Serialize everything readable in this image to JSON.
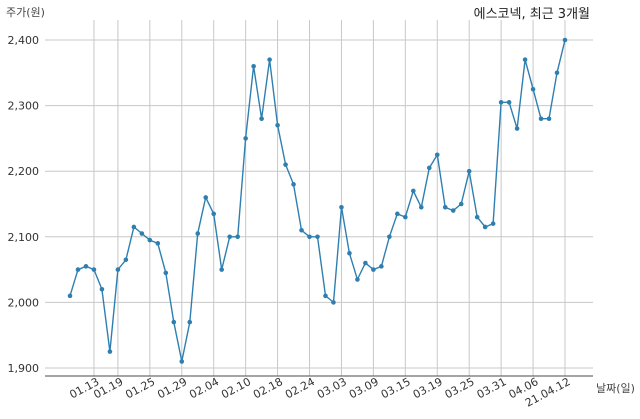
{
  "chart_data": {
    "type": "line",
    "title": "에스코넥, 최근 3개월",
    "ylabel": "주가(원)",
    "xlabel": "날짜(일)",
    "ylim": [
      1900,
      2400
    ],
    "yticks": [
      1900,
      2000,
      2100,
      2200,
      2300,
      2400
    ],
    "ytick_labels": [
      "1,900",
      "2,000",
      "2,100",
      "2,200",
      "2,300",
      "2,400"
    ],
    "grid": true,
    "line_color": "#2e7fb0",
    "xtick_labels": [
      {
        "i": 3,
        "label": "01.13"
      },
      {
        "i": 6,
        "label": "01.19"
      },
      {
        "i": 10,
        "label": "01.25"
      },
      {
        "i": 14,
        "label": "01.29"
      },
      {
        "i": 18,
        "label": "02.04"
      },
      {
        "i": 22,
        "label": "02.10"
      },
      {
        "i": 26,
        "label": "02.18"
      },
      {
        "i": 30,
        "label": "02.24"
      },
      {
        "i": 34,
        "label": "03.03"
      },
      {
        "i": 38,
        "label": "03.09"
      },
      {
        "i": 42,
        "label": "03.15"
      },
      {
        "i": 46,
        "label": "03.19"
      },
      {
        "i": 50,
        "label": "03.25"
      },
      {
        "i": 54,
        "label": "03.31"
      },
      {
        "i": 58,
        "label": "04.06"
      },
      {
        "i": 62,
        "label": "21.04.12"
      }
    ],
    "values": [
      2010,
      2050,
      2055,
      2050,
      2020,
      1925,
      2050,
      2065,
      2115,
      2105,
      2095,
      2090,
      2045,
      1970,
      1910,
      1970,
      2105,
      2160,
      2135,
      2050,
      2100,
      2100,
      2250,
      2360,
      2280,
      2370,
      2270,
      2210,
      2180,
      2110,
      2100,
      2100,
      2010,
      2000,
      2145,
      2075,
      2035,
      2060,
      2050,
      2055,
      2100,
      2135,
      2130,
      2170,
      2145,
      2205,
      2225,
      2145,
      2140,
      2150,
      2200,
      2130,
      2115,
      2120,
      2305,
      2305,
      2265,
      2370,
      2325,
      2280,
      2280,
      2350,
      2400
    ]
  }
}
